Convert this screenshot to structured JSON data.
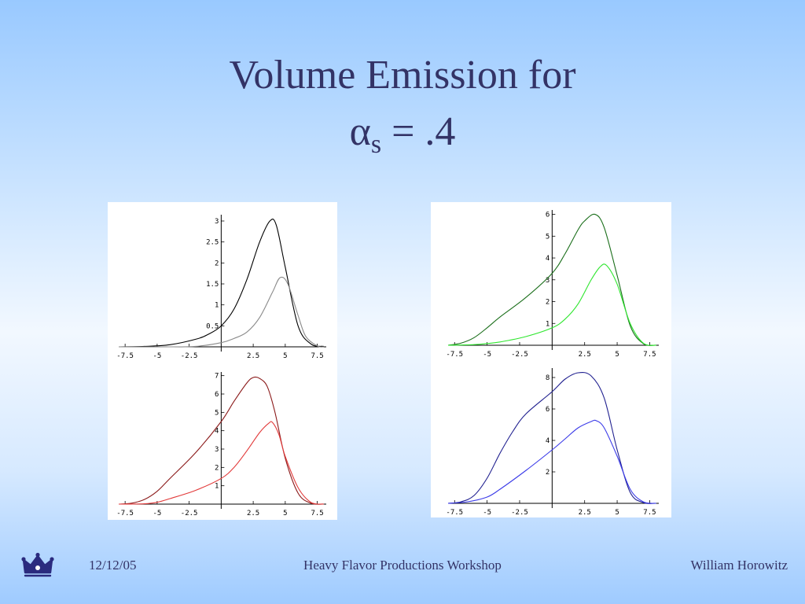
{
  "slide": {
    "title_line1": "Volume Emission for",
    "title_alpha": "α",
    "title_sub": "s",
    "title_rest": " = .4"
  },
  "footer": {
    "date": "12/12/05",
    "center": "Heavy Flavor Productions Workshop",
    "author": "William Horowitz"
  },
  "logo": {
    "icon": "crown-icon",
    "color": "#2b2b7f"
  },
  "chart_data": [
    {
      "type": "line",
      "panel": "top-left",
      "xlim": [
        -8,
        8.2
      ],
      "ylim": [
        0,
        3.15
      ],
      "xticks": [
        -7.5,
        -5,
        -2.5,
        2.5,
        5,
        7.5
      ],
      "xtick_labels": [
        "-7.5",
        "-5",
        "-2.5",
        "2.5",
        "5",
        "7.5"
      ],
      "yticks": [
        0.5,
        1,
        1.5,
        2,
        2.5,
        3
      ],
      "ytick_labels": [
        "0.5",
        "1",
        "1.5",
        "2",
        "2.5",
        "3"
      ],
      "series": [
        {
          "color": "#000000",
          "x": [
            -8,
            -6,
            -4,
            -2,
            -1,
            0,
            1,
            2,
            3,
            3.8,
            4.3,
            5,
            6,
            7,
            8
          ],
          "y": [
            0.0,
            0.01,
            0.05,
            0.18,
            0.3,
            0.5,
            0.9,
            1.6,
            2.5,
            3.0,
            2.9,
            1.9,
            0.5,
            0.07,
            0.01
          ]
        },
        {
          "color": "#8a8a8a",
          "x": [
            -8,
            -4,
            -2,
            0,
            1,
            2,
            3,
            4,
            4.6,
            5.2,
            6,
            6.6,
            7.5,
            8
          ],
          "y": [
            0.0,
            0.0,
            0.01,
            0.1,
            0.2,
            0.35,
            0.7,
            1.3,
            1.65,
            1.5,
            0.75,
            0.25,
            0.02,
            0.0
          ]
        }
      ]
    },
    {
      "type": "line",
      "panel": "bottom-left",
      "xlim": [
        -8,
        8.2
      ],
      "ylim": [
        0,
        7.2
      ],
      "xticks": [
        -7.5,
        -5,
        -2.5,
        2.5,
        5,
        7.5
      ],
      "xtick_labels": [
        "-7.5",
        "-5",
        "-2.5",
        "2.5",
        "5",
        "7.5"
      ],
      "yticks": [
        1,
        2,
        3,
        4,
        5,
        6,
        7
      ],
      "ytick_labels": [
        "1",
        "2",
        "3",
        "4",
        "5",
        "6",
        "7"
      ],
      "series": [
        {
          "color": "#8b1a1a",
          "x": [
            -8,
            -7,
            -6,
            -5,
            -4,
            -2,
            0,
            1,
            2,
            2.5,
            3,
            3.6,
            4.2,
            5,
            6,
            7,
            8
          ],
          "y": [
            0.0,
            0.05,
            0.25,
            0.7,
            1.4,
            2.8,
            4.5,
            5.6,
            6.6,
            6.9,
            6.85,
            6.4,
            5.0,
            2.5,
            0.6,
            0.05,
            0.0
          ]
        },
        {
          "color": "#e23a3a",
          "x": [
            -8,
            -6,
            -5,
            -4,
            -2,
            0,
            1,
            2,
            3,
            3.7,
            4,
            4.5,
            5,
            6,
            7,
            8
          ],
          "y": [
            0.0,
            0.02,
            0.1,
            0.3,
            0.75,
            1.4,
            2.0,
            2.9,
            3.9,
            4.4,
            4.45,
            3.8,
            2.6,
            0.9,
            0.1,
            0.0
          ]
        }
      ]
    },
    {
      "type": "line",
      "panel": "top-right",
      "xlim": [
        -8,
        8.2
      ],
      "ylim": [
        0,
        6.2
      ],
      "xticks": [
        -7.5,
        -5,
        -2.5,
        2.5,
        5,
        7.5
      ],
      "xtick_labels": [
        "-7.5",
        "-5",
        "-2.5",
        "2.5",
        "5",
        "7.5"
      ],
      "yticks": [
        1,
        2,
        3,
        4,
        5,
        6
      ],
      "ytick_labels": [
        "1",
        "2",
        "3",
        "4",
        "5",
        "6"
      ],
      "series": [
        {
          "color": "#1a6e1a",
          "x": [
            -8,
            -7,
            -6,
            -5,
            -4,
            -2,
            0,
            1,
            2,
            2.5,
            3.3,
            4,
            5,
            6,
            7,
            8
          ],
          "y": [
            0.0,
            0.1,
            0.35,
            0.8,
            1.3,
            2.2,
            3.3,
            4.2,
            5.3,
            5.7,
            6.0,
            5.4,
            3.2,
            0.9,
            0.08,
            0.0
          ]
        },
        {
          "color": "#2ee62e",
          "x": [
            -8,
            -6,
            -5,
            -4,
            -2,
            0,
            1,
            2,
            3,
            3.7,
            4.2,
            5,
            6,
            7,
            8
          ],
          "y": [
            0.0,
            0.03,
            0.08,
            0.15,
            0.4,
            0.8,
            1.2,
            1.9,
            3.0,
            3.6,
            3.65,
            2.8,
            1.0,
            0.1,
            0.0
          ]
        }
      ]
    },
    {
      "type": "line",
      "panel": "bottom-right",
      "xlim": [
        -8,
        8.2
      ],
      "ylim": [
        0,
        8.6
      ],
      "xticks": [
        -7.5,
        -5,
        -2.5,
        2.5,
        5,
        7.5
      ],
      "xtick_labels": [
        "-7.5",
        "-5",
        "-2.5",
        "2.5",
        "5",
        "7.5"
      ],
      "yticks": [
        2,
        4,
        6,
        8
      ],
      "ytick_labels": [
        "2",
        "4",
        "6",
        "8"
      ],
      "series": [
        {
          "color": "#1f1f8f",
          "x": [
            -8,
            -7,
            -6,
            -5,
            -4,
            -3,
            -2,
            0,
            1,
            2,
            3,
            4,
            5,
            6,
            7,
            8
          ],
          "y": [
            0.0,
            0.1,
            0.5,
            1.6,
            3.2,
            4.6,
            5.7,
            7.1,
            7.9,
            8.3,
            8.1,
            6.7,
            3.4,
            0.7,
            0.05,
            0.0
          ]
        },
        {
          "color": "#3a3ae8",
          "x": [
            -8,
            -6.5,
            -5,
            -4,
            -2,
            0,
            1,
            2,
            3,
            3.4,
            4,
            5,
            6,
            7,
            8
          ],
          "y": [
            0.0,
            0.1,
            0.4,
            0.9,
            2.1,
            3.4,
            4.1,
            4.8,
            5.2,
            5.25,
            4.8,
            3.0,
            0.9,
            0.1,
            0.0
          ]
        }
      ]
    }
  ]
}
